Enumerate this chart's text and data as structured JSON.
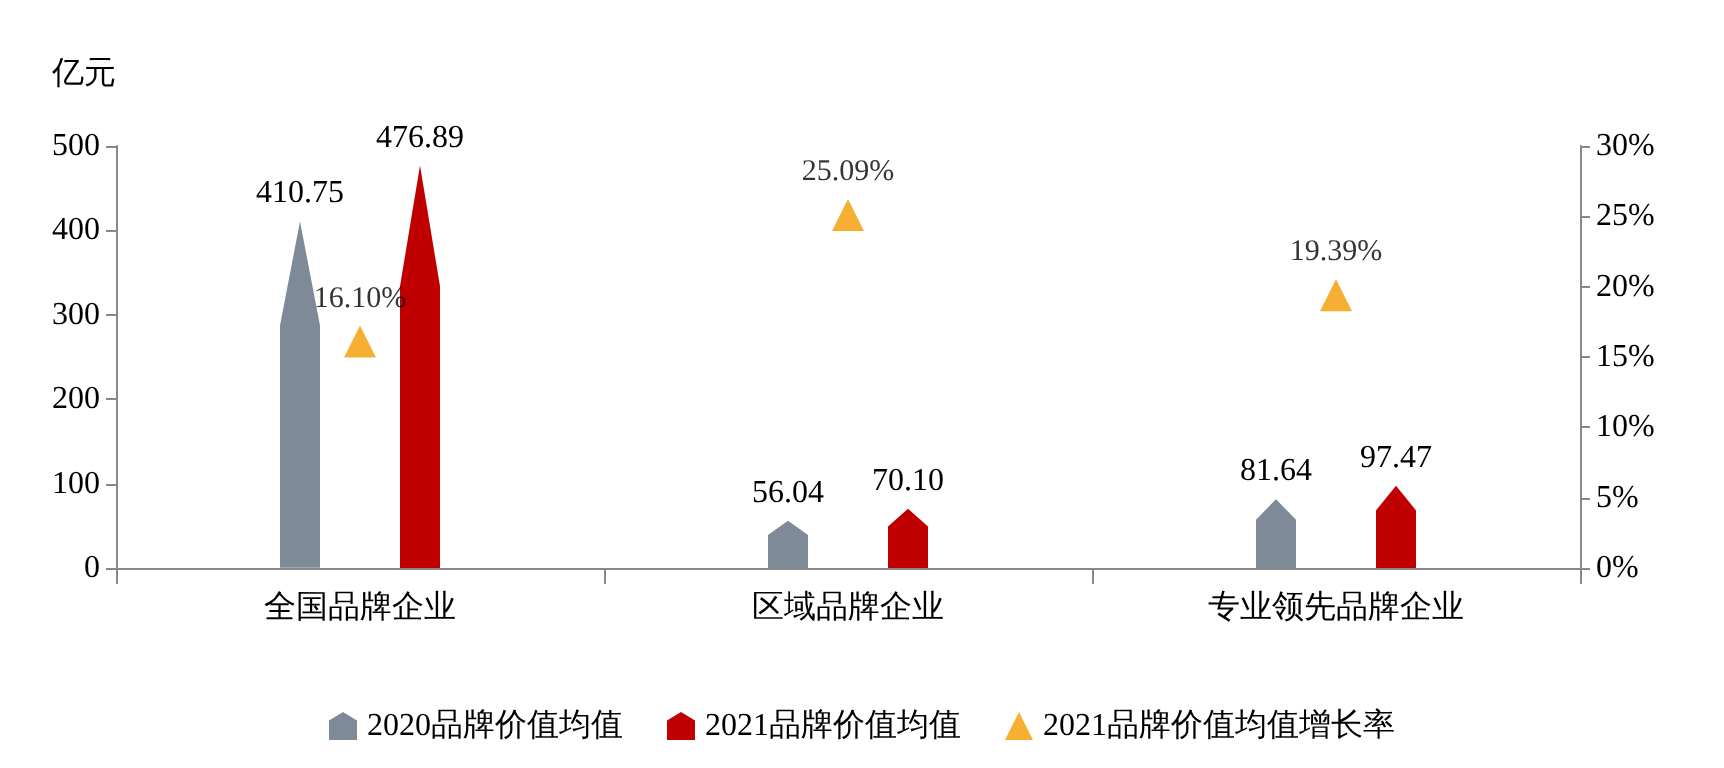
{
  "chart_data": {
    "type": "bar",
    "ylabel": "亿元",
    "categories": [
      "全国品牌企业",
      "区域品牌企业",
      "专业领先品牌企业"
    ],
    "series": [
      {
        "name": "2020品牌价值均值",
        "color": "#7f8a98",
        "values": [
          410.75,
          56.04,
          81.64
        ],
        "value_labels": [
          "410.75",
          "56.04",
          "81.64"
        ]
      },
      {
        "name": "2021品牌价值均值",
        "color": "#c00000",
        "values": [
          476.89,
          70.1,
          97.47
        ],
        "value_labels": [
          "476.89",
          "70.10",
          "97.47"
        ]
      },
      {
        "name": "2021品牌价值均值增长率",
        "type": "scatter",
        "axis": "y2",
        "marker": "triangle",
        "color": "#f59b00",
        "values": [
          16.1,
          25.09,
          19.39
        ],
        "value_labels": [
          "16.10%",
          "25.09%",
          "19.39%"
        ]
      }
    ],
    "ylim": [
      0,
      500
    ],
    "yticks": [
      0,
      100,
      200,
      300,
      400,
      500
    ],
    "y2lim": [
      0,
      30
    ],
    "y2ticks": [
      {
        "value": 0,
        "label": "0%"
      },
      {
        "value": 5,
        "label": "5%"
      },
      {
        "value": 10,
        "label": "10%"
      },
      {
        "value": 15,
        "label": "15%"
      },
      {
        "value": 20,
        "label": "20%"
      },
      {
        "value": 25,
        "label": "25%"
      },
      {
        "value": 30,
        "label": "30%"
      }
    ],
    "legend": "bottom",
    "grid": false
  }
}
